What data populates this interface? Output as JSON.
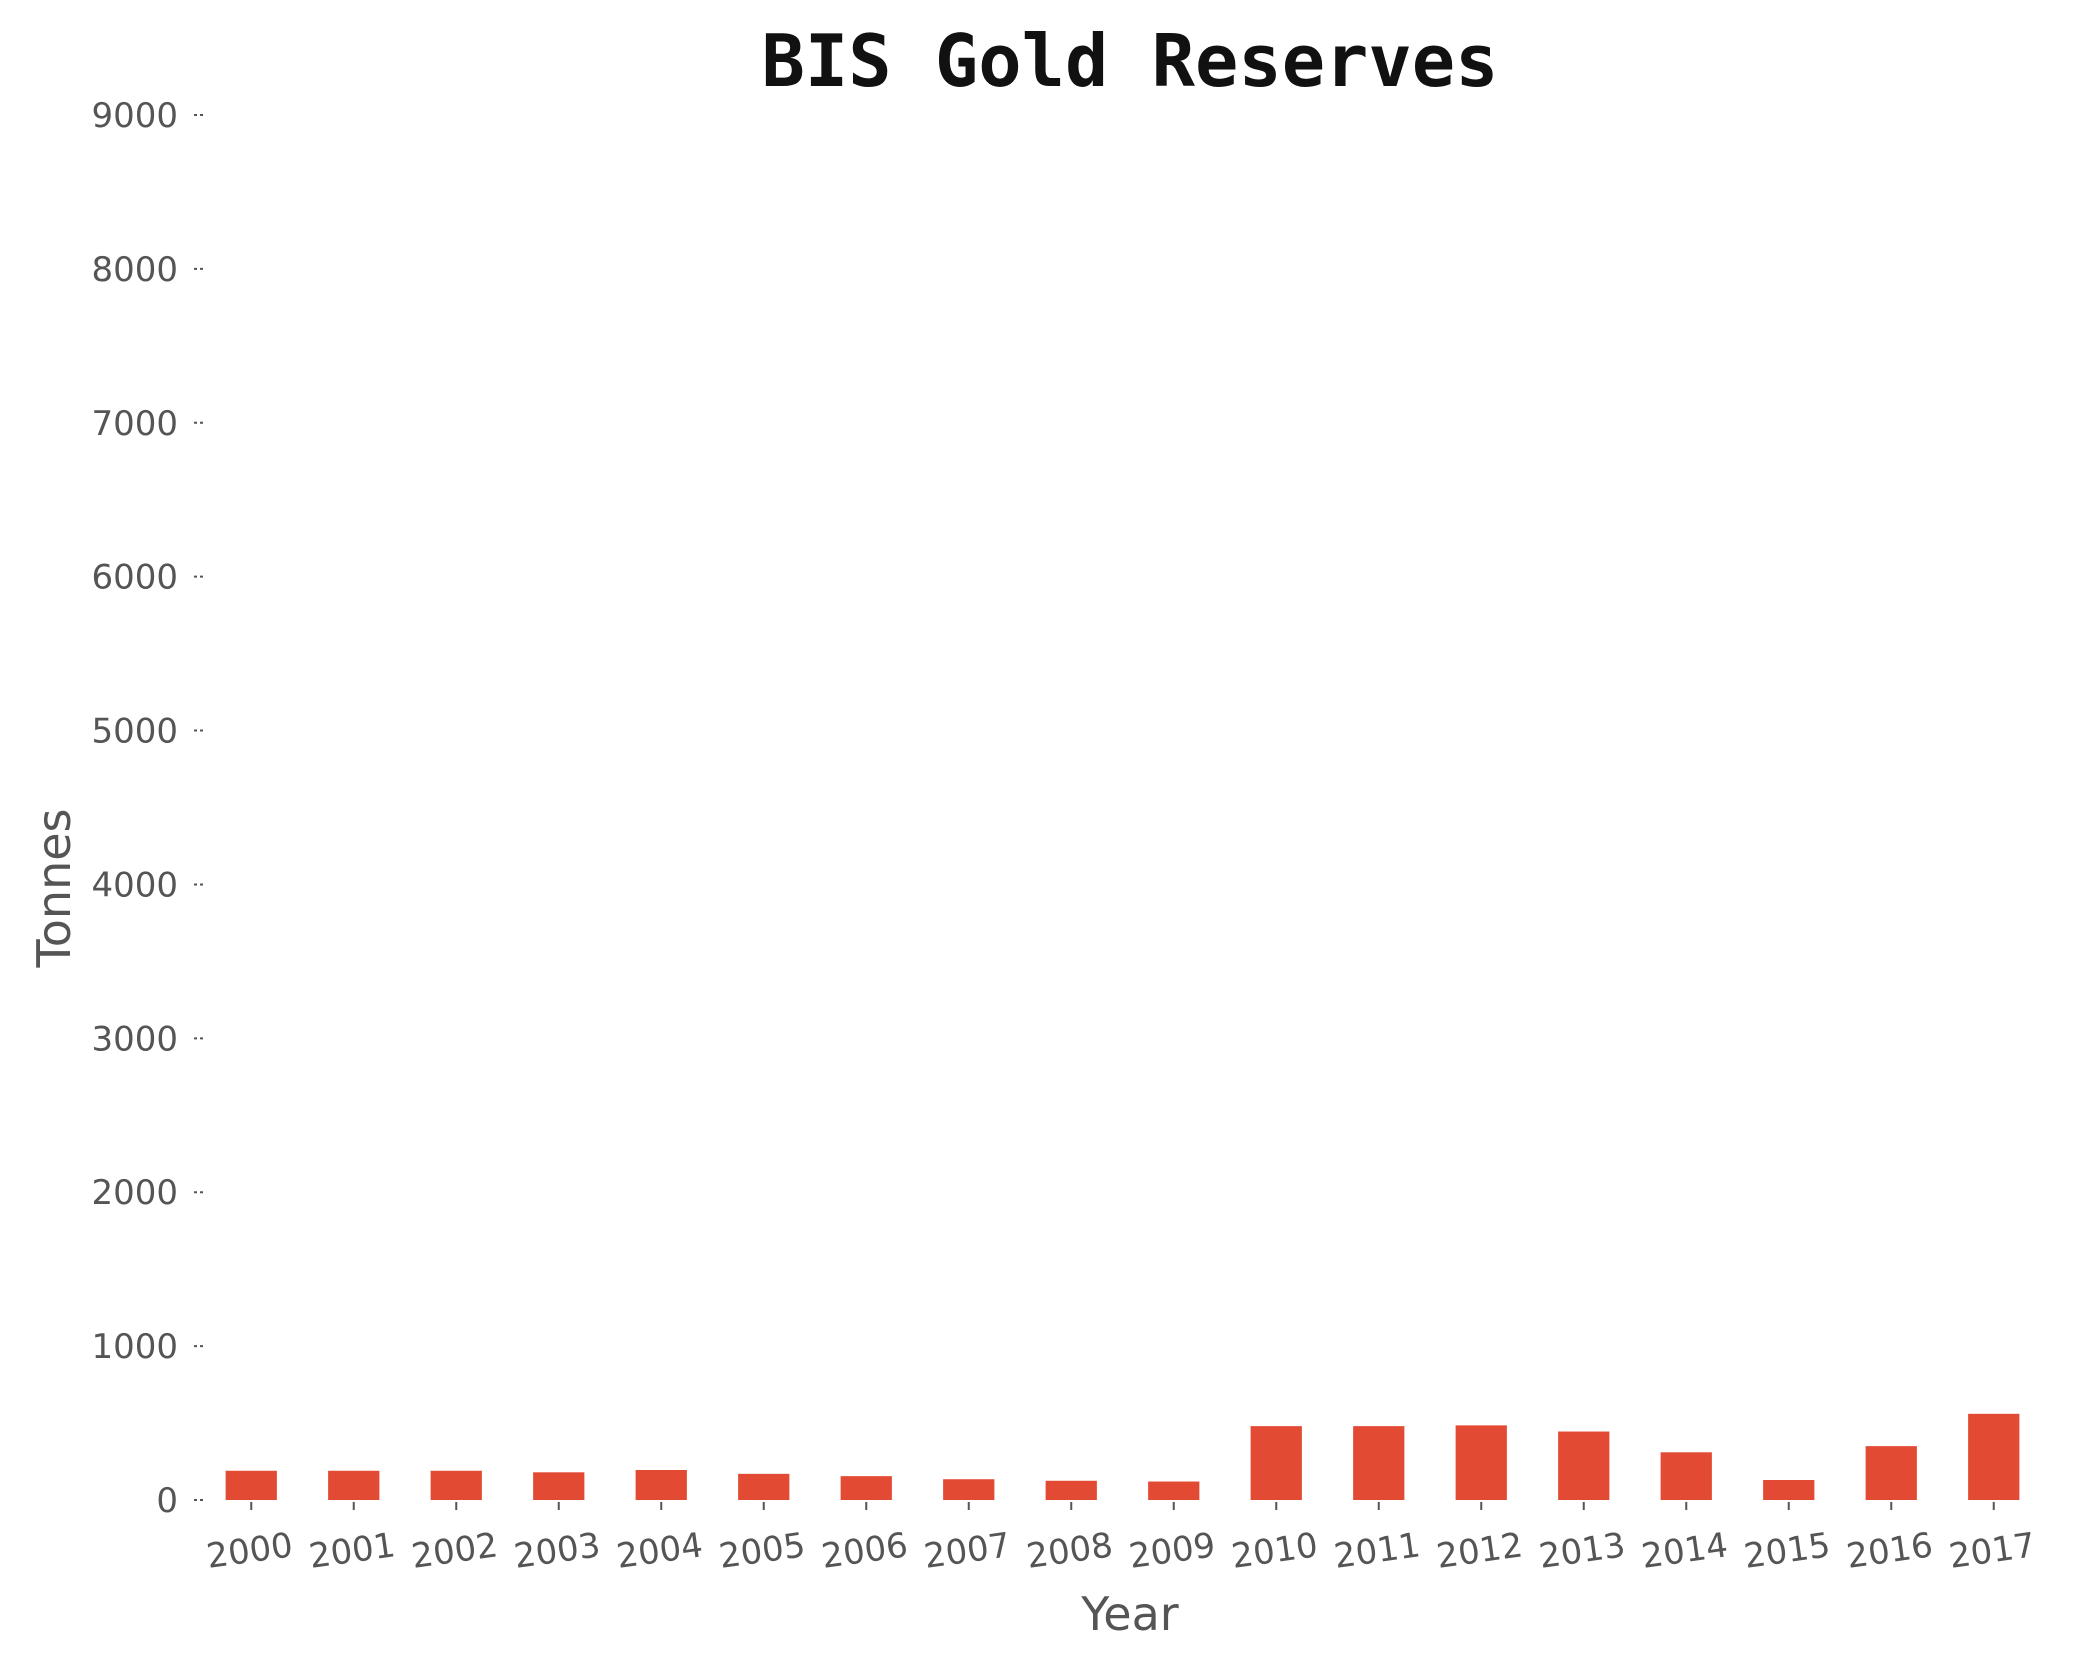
{
  "chart_data": {
    "type": "bar",
    "title": "BIS Gold Reserves",
    "xlabel": "Year",
    "ylabel": "Tonnes",
    "categories": [
      "2000",
      "2001",
      "2002",
      "2003",
      "2004",
      "2005",
      "2006",
      "2007",
      "2008",
      "2009",
      "2010",
      "2011",
      "2012",
      "2013",
      "2014",
      "2015",
      "2016",
      "2017"
    ],
    "values": [
      190,
      190,
      190,
      180,
      195,
      170,
      155,
      135,
      125,
      120,
      480,
      480,
      485,
      445,
      310,
      130,
      350,
      560
    ],
    "yticks": [
      "0",
      "1000",
      "2000",
      "3000",
      "4000",
      "5000",
      "6000",
      "7000",
      "8000",
      "9000"
    ],
    "ylim": [
      0,
      9000
    ],
    "grid": false,
    "bar_color": "#E34A33"
  }
}
